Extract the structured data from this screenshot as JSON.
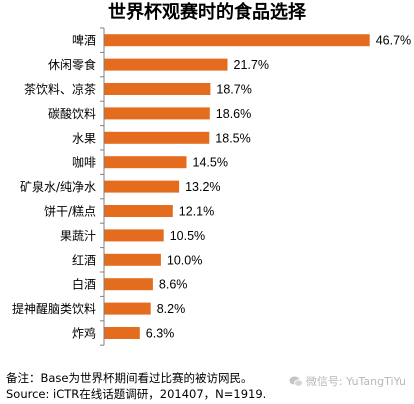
{
  "chart_data": {
    "type": "bar",
    "orientation": "horizontal",
    "title": "世界杯观赛时的食品选择",
    "categories": [
      "啤酒",
      "休闲零食",
      "茶饮料、凉茶",
      "碳酸饮料",
      "水果",
      "咖啡",
      "矿泉水/纯净水",
      "饼干/糕点",
      "果蔬汁",
      "红酒",
      "白酒",
      "提神醒脑类饮料",
      "炸鸡"
    ],
    "values": [
      46.7,
      21.7,
      18.7,
      18.6,
      18.5,
      14.5,
      13.2,
      12.1,
      10.5,
      10.0,
      8.6,
      8.2,
      6.3
    ],
    "value_labels": [
      "46.7%",
      "21.7%",
      "18.7%",
      "18.6%",
      "18.5%",
      "14.5%",
      "13.2%",
      "12.1%",
      "10.5%",
      "10.0%",
      "8.6%",
      "8.2%",
      "6.3%"
    ],
    "unit": "%",
    "xlim": [
      0,
      50
    ],
    "bar_color": "#e46c1e",
    "axis_color": "#808080",
    "grid": false,
    "legend": "none"
  },
  "footnotes": {
    "note": "备注：Base为世界杯期间看过比赛的被访网民。",
    "source": "Source: iCTR在线话题调研，201407，N=1919."
  },
  "watermark": {
    "text": "微信号: YuTangTiYu",
    "icon": "wechat-icon"
  }
}
